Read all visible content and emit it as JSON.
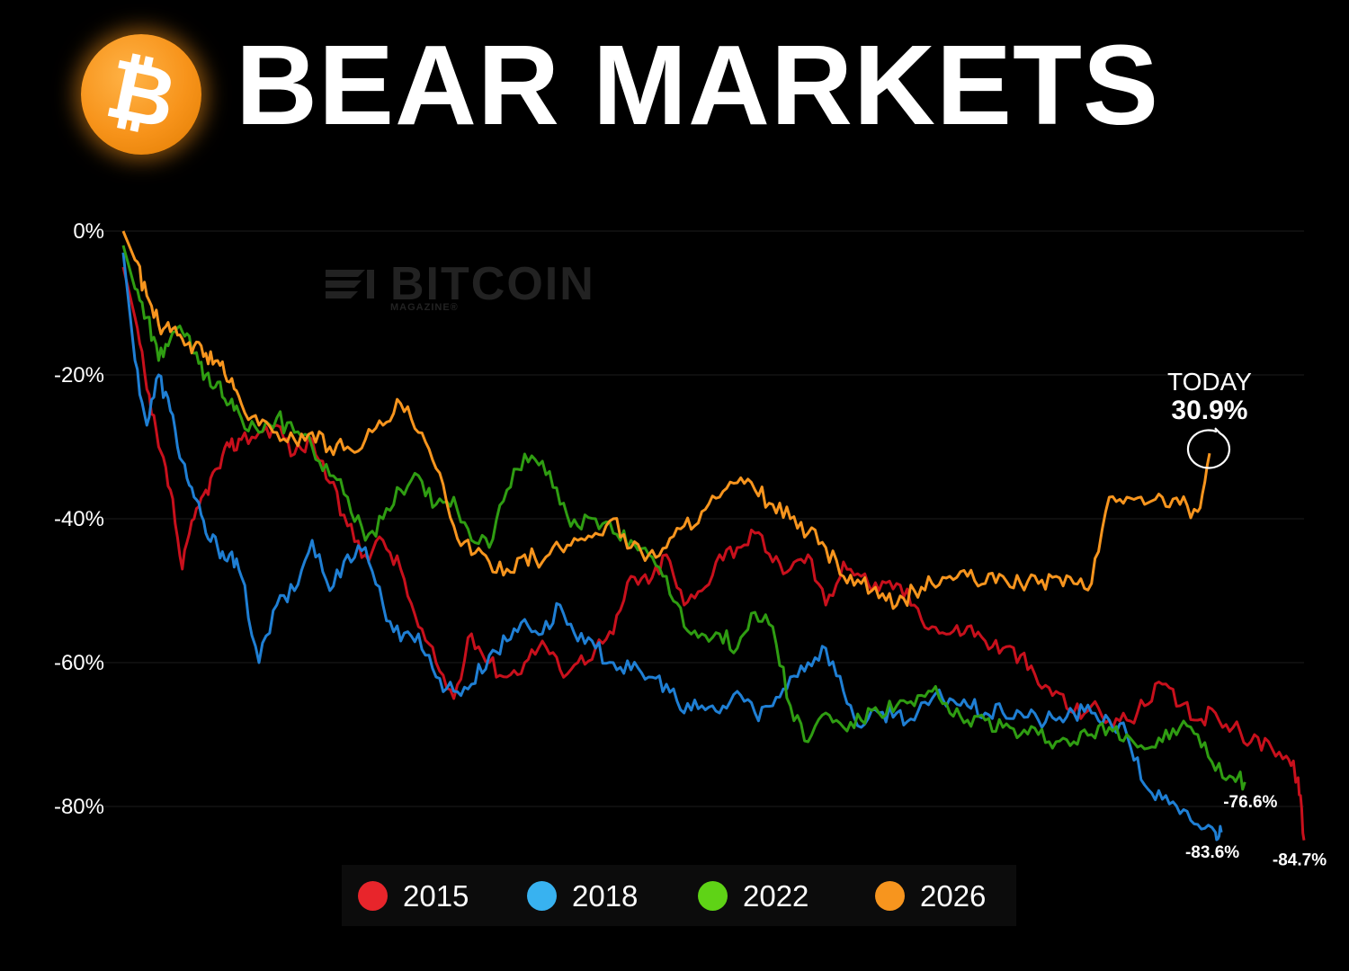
{
  "header": {
    "title": "BEAR MARKETS",
    "logo_symbol": "₿",
    "logo_icon": "bitcoin-logo-icon"
  },
  "watermark": {
    "text": "BITCOIN",
    "subtext": "MAGAZINE®",
    "icon": "bitcoin-magazine-logo-icon"
  },
  "annotation": {
    "label": "TODAY",
    "value": "30.9%"
  },
  "colors": {
    "2015": "#c8101c",
    "2018": "#1f7fd4",
    "2022": "#2f9d12",
    "2026": "#f7951e",
    "background": "#000000",
    "grid": "#1c1c1c"
  },
  "chart_data": {
    "type": "line",
    "title": "BEAR MARKETS",
    "xlabel": "",
    "ylabel": "",
    "ylim": [
      -87,
      0
    ],
    "yticks": [
      0,
      -20,
      -40,
      -60,
      -80
    ],
    "ytick_labels": [
      "0%",
      "-20%",
      "-40%",
      "-60%",
      "-80%"
    ],
    "xlim": [
      0,
      1000
    ],
    "grid": true,
    "legend_position": "bottom",
    "series": [
      {
        "name": "2015",
        "end_label": "-84.7%",
        "x": [
          0,
          10,
          20,
          30,
          40,
          50,
          60,
          70,
          80,
          90,
          100,
          115,
          130,
          145,
          160,
          175,
          190,
          205,
          220,
          235,
          250,
          265,
          280,
          295,
          310,
          325,
          340,
          355,
          370,
          385,
          400,
          415,
          430,
          445,
          460,
          475,
          490,
          505,
          520,
          535,
          550,
          565,
          580,
          595,
          610,
          625,
          640,
          655,
          670,
          685,
          700,
          715,
          730,
          745,
          760,
          775,
          790,
          805,
          820,
          835,
          850,
          865,
          880,
          895,
          910,
          925,
          940,
          955,
          970,
          985,
          995,
          1000
        ],
        "y": [
          -5,
          -12,
          -22,
          -30,
          -36,
          -47,
          -40,
          -36,
          -33,
          -30,
          -29,
          -28,
          -27,
          -31,
          -29,
          -35,
          -41,
          -45,
          -43,
          -47,
          -55,
          -60,
          -65,
          -56,
          -60,
          -62,
          -60,
          -57,
          -61,
          -60,
          -58,
          -56,
          -48,
          -49,
          -45,
          -52,
          -50,
          -45,
          -44,
          -42,
          -46,
          -47,
          -45,
          -52,
          -46,
          -48,
          -50,
          -49,
          -52,
          -55,
          -56,
          -55,
          -57,
          -58,
          -59,
          -63,
          -64,
          -67,
          -66,
          -68,
          -68,
          -66,
          -63,
          -66,
          -68,
          -67,
          -69,
          -71,
          -71,
          -73,
          -76,
          -84.7
        ]
      },
      {
        "name": "2018",
        "end_label": "-83.6%",
        "x": [
          0,
          10,
          20,
          30,
          40,
          50,
          60,
          70,
          80,
          90,
          100,
          115,
          130,
          145,
          160,
          175,
          190,
          205,
          220,
          235,
          250,
          265,
          280,
          295,
          310,
          325,
          340,
          355,
          370,
          385,
          400,
          415,
          430,
          445,
          460,
          475,
          490,
          505,
          520,
          535,
          550,
          565,
          580,
          595,
          610,
          625,
          640,
          655,
          670,
          685,
          700,
          715,
          730,
          745,
          760,
          775,
          790,
          805,
          820,
          835,
          850,
          865,
          880,
          895,
          910,
          925,
          930
        ],
        "y": [
          -3,
          -18,
          -27,
          -20,
          -25,
          -32,
          -37,
          -42,
          -44,
          -45,
          -48,
          -60,
          -52,
          -50,
          -43,
          -50,
          -45,
          -44,
          -52,
          -57,
          -56,
          -62,
          -64,
          -63,
          -59,
          -57,
          -54,
          -56,
          -52,
          -57,
          -58,
          -60,
          -61,
          -62,
          -63,
          -67,
          -66,
          -67,
          -64,
          -67,
          -66,
          -62,
          -60,
          -58,
          -64,
          -69,
          -67,
          -67,
          -68,
          -65,
          -65,
          -66,
          -67,
          -67,
          -67,
          -68,
          -68,
          -67,
          -67,
          -68,
          -70,
          -77,
          -79,
          -81,
          -82.5,
          -83.6,
          -83.6
        ]
      },
      {
        "name": "2022",
        "end_label": "-76.6%",
        "x": [
          0,
          10,
          20,
          30,
          40,
          50,
          60,
          70,
          80,
          90,
          100,
          115,
          130,
          145,
          160,
          175,
          190,
          205,
          220,
          235,
          250,
          265,
          280,
          295,
          310,
          325,
          340,
          355,
          370,
          385,
          400,
          415,
          430,
          445,
          460,
          475,
          490,
          505,
          520,
          535,
          550,
          565,
          580,
          595,
          610,
          625,
          640,
          655,
          670,
          685,
          700,
          715,
          730,
          745,
          760,
          775,
          790,
          805,
          820,
          835,
          850,
          865,
          880,
          895,
          910,
          925,
          940,
          950
        ],
        "y": [
          -2,
          -8,
          -12,
          -18,
          -15,
          -14,
          -17,
          -20,
          -21,
          -24,
          -26,
          -28,
          -26,
          -28,
          -30,
          -34,
          -37,
          -43,
          -40,
          -36,
          -34,
          -38,
          -37,
          -43,
          -44,
          -36,
          -31,
          -32,
          -38,
          -41,
          -40,
          -42,
          -43,
          -45,
          -48,
          -55,
          -56,
          -56,
          -58,
          -53,
          -55,
          -66,
          -71,
          -67,
          -69,
          -68,
          -67,
          -66,
          -66,
          -64,
          -67,
          -68,
          -68,
          -69,
          -70,
          -70,
          -71,
          -71,
          -70,
          -69,
          -70,
          -72,
          -71,
          -69,
          -70,
          -75,
          -76,
          -76.6
        ]
      },
      {
        "name": "2026",
        "end_label": "",
        "x": [
          0,
          10,
          20,
          30,
          40,
          50,
          60,
          70,
          80,
          90,
          100,
          115,
          130,
          145,
          160,
          175,
          190,
          205,
          220,
          235,
          250,
          265,
          280,
          295,
          310,
          325,
          340,
          355,
          370,
          385,
          400,
          415,
          430,
          445,
          460,
          475,
          490,
          505,
          520,
          535,
          550,
          565,
          580,
          595,
          610,
          625,
          640,
          655,
          670,
          685,
          700,
          715,
          730,
          745,
          760,
          775,
          790,
          805,
          820,
          835,
          850,
          865,
          880,
          895,
          910,
          920
        ],
        "y": [
          0,
          -4,
          -9,
          -13,
          -14,
          -15,
          -16,
          -17,
          -18,
          -21,
          -24,
          -27,
          -28,
          -29,
          -28,
          -30,
          -30,
          -29,
          -27,
          -24,
          -28,
          -33,
          -41,
          -45,
          -46,
          -47,
          -45,
          -46,
          -44,
          -43,
          -42,
          -40,
          -44,
          -45,
          -44,
          -41,
          -39,
          -37,
          -35,
          -36,
          -38,
          -40,
          -42,
          -44,
          -48,
          -49,
          -51,
          -52,
          -50,
          -49,
          -48,
          -48,
          -49,
          -48,
          -49,
          -49,
          -48,
          -49,
          -49,
          -37,
          -37,
          -38,
          -37,
          -38,
          -39,
          -30.9
        ]
      }
    ]
  },
  "legend": {
    "items": [
      {
        "label": "2015",
        "color": "#e8252b"
      },
      {
        "label": "2018",
        "color": "#38b2f0"
      },
      {
        "label": "2022",
        "color": "#5fd316"
      },
      {
        "label": "2026",
        "color": "#f7951e"
      }
    ]
  }
}
